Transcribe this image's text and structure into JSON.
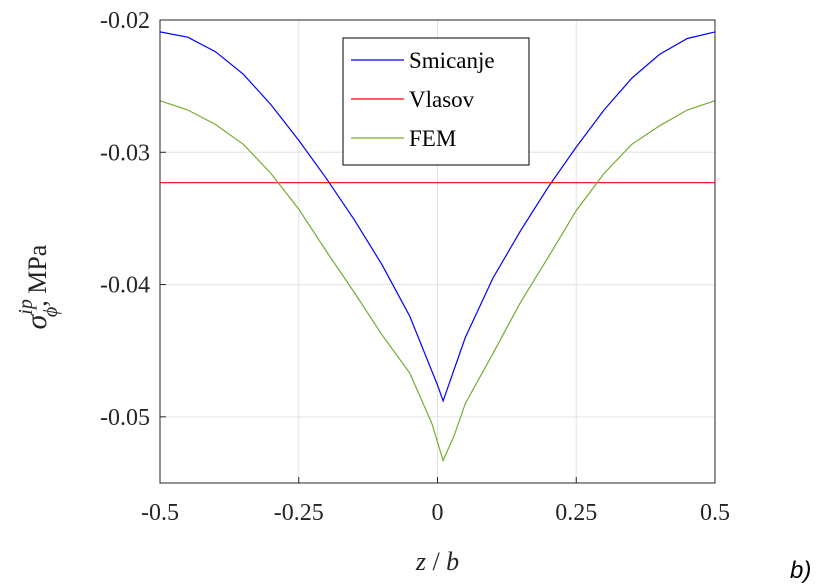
{
  "chart_data": {
    "type": "line",
    "title": "",
    "xlabel_parts": {
      "var": "z",
      "sep": " / ",
      "den": "b"
    },
    "ylabel_parts": {
      "sym": "σ",
      "sup": "ip",
      "sub": "ϕ",
      "rest": ", MPa"
    },
    "xlim": [
      -0.5,
      0.5
    ],
    "ylim": [
      -0.055,
      -0.02
    ],
    "xticks": [
      -0.5,
      -0.25,
      0,
      0.25,
      0.5
    ],
    "xtick_labels": [
      "-0.5",
      "-0.25",
      "0",
      "0.25",
      "0.5"
    ],
    "yticks": [
      -0.05,
      -0.04,
      -0.03,
      -0.02
    ],
    "ytick_labels": [
      "-0.05",
      "-0.04",
      "-0.03",
      "-0.02"
    ],
    "grid": true,
    "legend_position": "top-center",
    "series": [
      {
        "name": "Smicanje",
        "color": "#0000ff",
        "x": [
          -0.5,
          -0.45,
          -0.4,
          -0.35,
          -0.3,
          -0.25,
          -0.2,
          -0.15,
          -0.1,
          -0.05,
          0.0,
          0.01,
          0.05,
          0.1,
          0.15,
          0.2,
          0.25,
          0.3,
          0.35,
          0.4,
          0.45,
          0.5
        ],
        "y": [
          -0.0209,
          -0.0213,
          -0.0224,
          -0.0241,
          -0.0264,
          -0.0291,
          -0.032,
          -0.0351,
          -0.0385,
          -0.0424,
          -0.0476,
          -0.0488,
          -0.044,
          -0.0395,
          -0.0359,
          -0.0326,
          -0.0296,
          -0.0268,
          -0.0244,
          -0.0226,
          -0.0214,
          -0.0209
        ]
      },
      {
        "name": "Vlasov",
        "color": "#ff0000",
        "x": [
          -0.5,
          0.5
        ],
        "y": [
          -0.0323,
          -0.0323
        ]
      },
      {
        "name": "FEM",
        "color": "#77ac30",
        "x": [
          -0.5,
          -0.45,
          -0.4,
          -0.35,
          -0.3,
          -0.25,
          -0.2,
          -0.15,
          -0.1,
          -0.05,
          -0.01,
          0.01,
          0.03,
          0.05,
          0.1,
          0.15,
          0.2,
          0.25,
          0.3,
          0.35,
          0.4,
          0.45,
          0.5
        ],
        "y": [
          -0.0261,
          -0.0268,
          -0.0279,
          -0.0294,
          -0.0316,
          -0.0343,
          -0.0375,
          -0.0406,
          -0.0438,
          -0.0467,
          -0.0505,
          -0.0533,
          -0.0514,
          -0.049,
          -0.0452,
          -0.0413,
          -0.0379,
          -0.0344,
          -0.0316,
          -0.0294,
          -0.028,
          -0.0268,
          -0.0261
        ]
      }
    ]
  },
  "panel_label": "b)"
}
